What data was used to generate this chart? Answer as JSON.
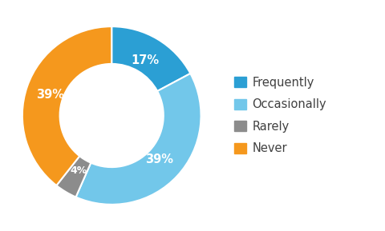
{
  "labels": [
    "Frequently",
    "Occasionally",
    "Rarely",
    "Never"
  ],
  "values": [
    17,
    39,
    4,
    39
  ],
  "colors": [
    "#2B9FD4",
    "#72C7EA",
    "#8C8C8C",
    "#F5981D"
  ],
  "pct_labels": [
    "17%",
    "39%",
    "4%",
    "39%"
  ],
  "legend_colors": [
    "#2B9FD4",
    "#72C7EA",
    "#8C8C8C",
    "#F5981D"
  ],
  "background_color": "#ffffff",
  "wedge_linewidth": 1.5,
  "wedge_edgecolor": "#ffffff",
  "donut_width": 0.42,
  "label_fontsize": 10.5,
  "legend_fontsize": 10.5,
  "startangle": 90
}
